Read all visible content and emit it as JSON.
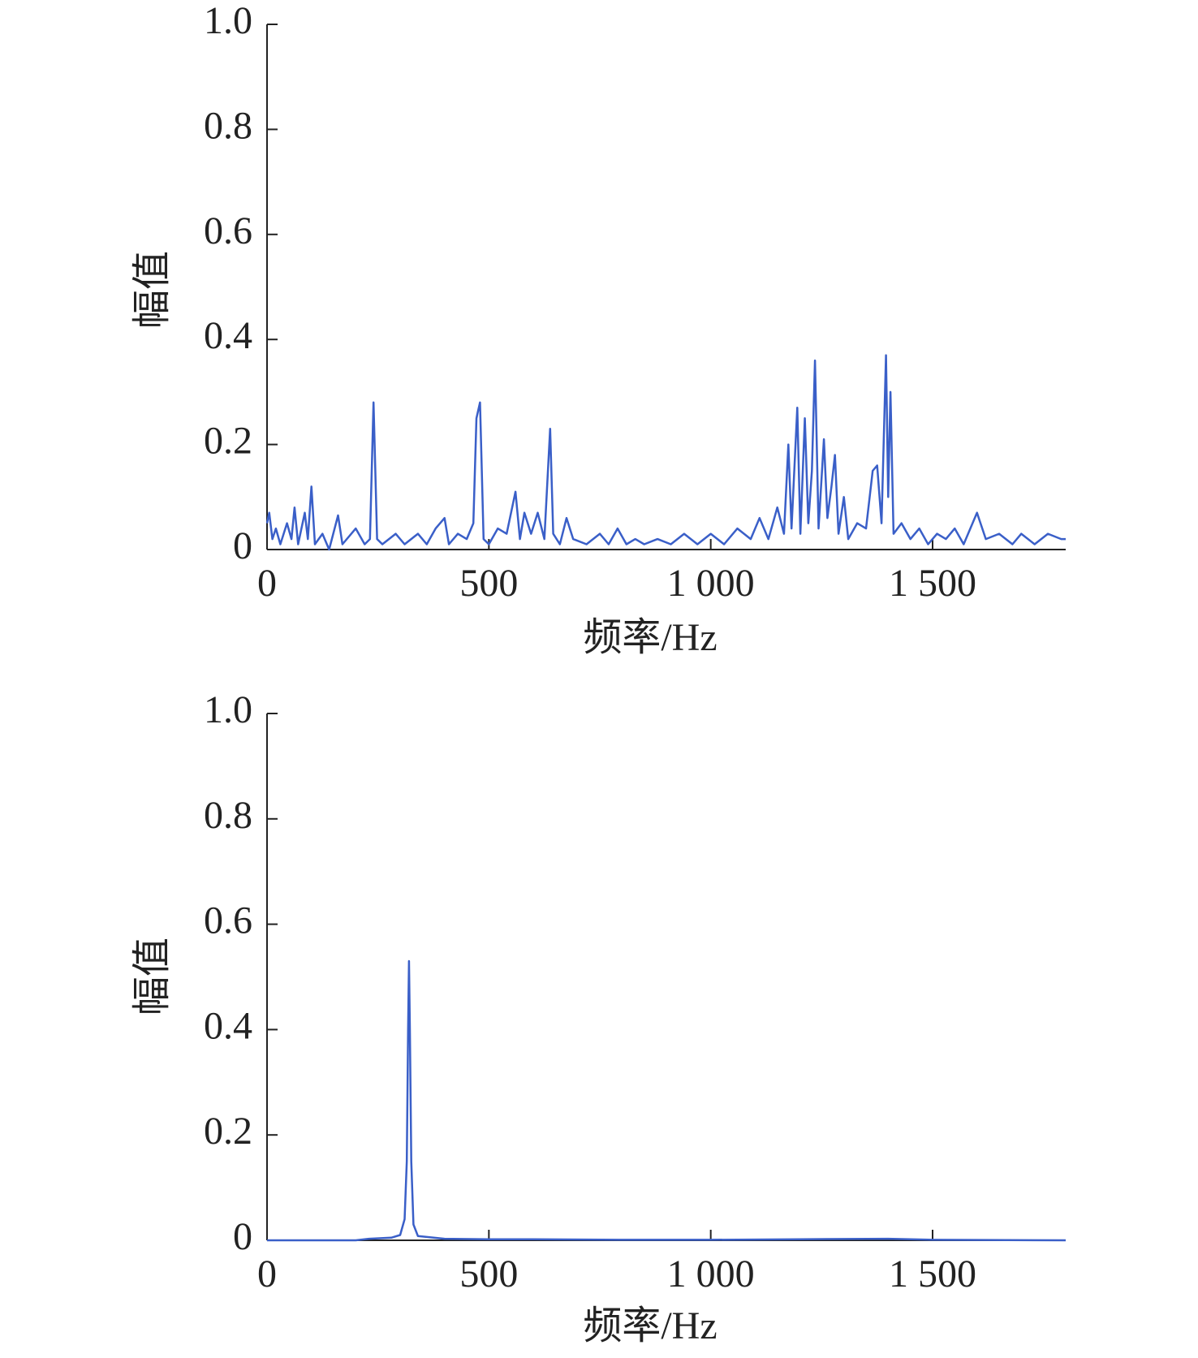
{
  "chart_data": [
    {
      "type": "line",
      "x_label": "频率/Hz",
      "y_label": "幅值",
      "xlim": [
        0,
        1800
      ],
      "ylim": [
        0,
        1
      ],
      "xticks": [
        0,
        500,
        {
          "value": 1000,
          "label": "1 000"
        },
        {
          "value": 1500,
          "label": "1 500"
        }
      ],
      "yticks": [
        0,
        0.2,
        0.4,
        0.6,
        0.8,
        {
          "value": 1,
          "label": "1.0"
        }
      ],
      "color": "#3a5fc8",
      "x": [
        0,
        5,
        12,
        20,
        30,
        45,
        55,
        62,
        70,
        85,
        92,
        100,
        108,
        125,
        140,
        160,
        170,
        200,
        220,
        232,
        240,
        248,
        260,
        290,
        310,
        340,
        360,
        380,
        400,
        410,
        430,
        450,
        465,
        472,
        480,
        488,
        500,
        520,
        540,
        560,
        570,
        580,
        595,
        610,
        625,
        638,
        645,
        660,
        675,
        690,
        720,
        750,
        770,
        790,
        810,
        830,
        850,
        880,
        910,
        940,
        970,
        1000,
        1030,
        1060,
        1090,
        1110,
        1130,
        1150,
        1165,
        1175,
        1182,
        1195,
        1202,
        1212,
        1220,
        1228,
        1235,
        1243,
        1255,
        1263,
        1272,
        1280,
        1288,
        1300,
        1310,
        1330,
        1350,
        1365,
        1375,
        1385,
        1395,
        1400,
        1405,
        1412,
        1430,
        1450,
        1470,
        1490,
        1510,
        1530,
        1550,
        1570,
        1600,
        1620,
        1650,
        1680,
        1700,
        1730,
        1760,
        1790,
        1800
      ],
      "values": [
        0.05,
        0.07,
        0.02,
        0.04,
        0.01,
        0.05,
        0.02,
        0.08,
        0.01,
        0.07,
        0.02,
        0.12,
        0.01,
        0.03,
        0,
        0.065,
        0.01,
        0.04,
        0.01,
        0.02,
        0.28,
        0.02,
        0.01,
        0.03,
        0.01,
        0.03,
        0.01,
        0.04,
        0.06,
        0.01,
        0.03,
        0.02,
        0.05,
        0.25,
        0.28,
        0.02,
        0.01,
        0.04,
        0.03,
        0.11,
        0.02,
        0.07,
        0.03,
        0.07,
        0.02,
        0.23,
        0.03,
        0.01,
        0.06,
        0.02,
        0.01,
        0.03,
        0.01,
        0.04,
        0.01,
        0.02,
        0.01,
        0.02,
        0.01,
        0.03,
        0.01,
        0.03,
        0.01,
        0.04,
        0.02,
        0.06,
        0.02,
        0.08,
        0.03,
        0.2,
        0.04,
        0.27,
        0.03,
        0.25,
        0.05,
        0.15,
        0.36,
        0.04,
        0.21,
        0.06,
        0.12,
        0.18,
        0.03,
        0.1,
        0.02,
        0.05,
        0.04,
        0.15,
        0.16,
        0.05,
        0.37,
        0.1,
        0.3,
        0.03,
        0.05,
        0.02,
        0.04,
        0.01,
        0.03,
        0.02,
        0.04,
        0.01,
        0.07,
        0.02,
        0.03,
        0.01,
        0.03,
        0.01,
        0.03,
        0.02,
        0.02
      ]
    },
    {
      "type": "line",
      "x_label": "频率/Hz",
      "y_label": "幅值",
      "xlim": [
        0,
        1800
      ],
      "ylim": [
        0,
        1
      ],
      "xticks": [
        0,
        500,
        {
          "value": 1000,
          "label": "1 000"
        },
        {
          "value": 1500,
          "label": "1 500"
        }
      ],
      "yticks": [
        0,
        0.2,
        0.4,
        0.6,
        0.8,
        {
          "value": 1,
          "label": "1.0"
        }
      ],
      "color": "#3a5fc8",
      "x": [
        0,
        200,
        230,
        280,
        300,
        310,
        315,
        318,
        320,
        322,
        325,
        330,
        340,
        400,
        500,
        600,
        800,
        1000,
        1200,
        1400,
        1500,
        1800
      ],
      "values": [
        0,
        0,
        0.003,
        0.005,
        0.01,
        0.04,
        0.15,
        0.4,
        0.53,
        0.4,
        0.15,
        0.03,
        0.008,
        0.003,
        0.002,
        0.002,
        0.001,
        0.001,
        0.002,
        0.003,
        0.001,
        0
      ]
    }
  ]
}
